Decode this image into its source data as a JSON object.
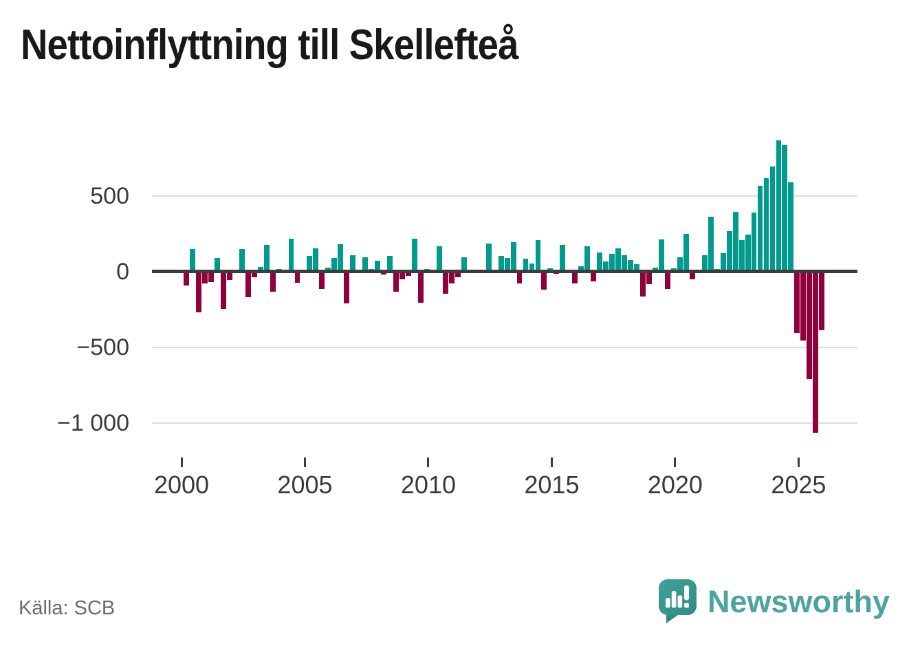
{
  "title": "Nettoinflyttning till Skellefteå",
  "footer": {
    "source": "Källa: SCB",
    "brand": "Newsworthy",
    "logo_icon": "newsworthy-speech-bubble-barchart-icon"
  },
  "chart_data": {
    "type": "bar",
    "title": "Nettoinflyttning till Skellefteå",
    "x_unit": "quarter",
    "ylabel": "",
    "xlabel": "",
    "ylim": [
      -1100,
      900
    ],
    "grid": true,
    "zero_line": true,
    "colors": {
      "positive": "#009B8D",
      "negative": "#90003C",
      "zero_line": "#3c3c3c",
      "gridline": "#dcdcdc"
    },
    "y_ticks": [
      {
        "label": "500",
        "value": 500
      },
      {
        "label": "0",
        "value": 0
      },
      {
        "label": "−500",
        "value": -500
      },
      {
        "label": "−1 000",
        "value": -1000
      }
    ],
    "x_tick_years": [
      2000,
      2005,
      2010,
      2015,
      2020,
      2025
    ],
    "years": [
      {
        "year": 2000,
        "values": [
          -94,
          148,
          -271,
          -79
        ]
      },
      {
        "year": 2001,
        "values": [
          -71,
          88,
          -248,
          -55
        ]
      },
      {
        "year": 2002,
        "values": [
          3,
          150,
          -172,
          -37
        ]
      },
      {
        "year": 2003,
        "values": [
          30,
          175,
          -135,
          16
        ]
      },
      {
        "year": 2004,
        "values": [
          2,
          214,
          -77,
          2
        ]
      },
      {
        "year": 2005,
        "values": [
          104,
          153,
          -114,
          23
        ]
      },
      {
        "year": 2006,
        "values": [
          90,
          180,
          -212,
          108
        ]
      },
      {
        "year": 2007,
        "values": [
          2,
          95,
          15,
          72
        ]
      },
      {
        "year": 2008,
        "values": [
          -21,
          102,
          -136,
          -53
        ]
      },
      {
        "year": 2009,
        "values": [
          -29,
          214,
          -208,
          17
        ]
      },
      {
        "year": 2010,
        "values": [
          3,
          168,
          -148,
          -79
        ]
      },
      {
        "year": 2011,
        "values": [
          -37,
          92,
          -3,
          2
        ]
      },
      {
        "year": 2012,
        "values": [
          -2,
          182,
          2,
          103
        ]
      },
      {
        "year": 2013,
        "values": [
          89,
          194,
          -79,
          85
        ]
      },
      {
        "year": 2014,
        "values": [
          53,
          205,
          -120,
          20
        ]
      },
      {
        "year": 2015,
        "values": [
          -18,
          176,
          -2,
          -79
        ]
      },
      {
        "year": 2016,
        "values": [
          36,
          167,
          -64,
          126
        ]
      },
      {
        "year": 2017,
        "values": [
          67,
          114,
          152,
          106
        ]
      },
      {
        "year": 2018,
        "values": [
          76,
          50,
          -167,
          -86
        ]
      },
      {
        "year": 2019,
        "values": [
          24,
          212,
          -118,
          22
        ]
      },
      {
        "year": 2020,
        "values": [
          95,
          250,
          -52,
          2
        ]
      },
      {
        "year": 2021,
        "values": [
          108,
          361,
          17,
          120
        ]
      },
      {
        "year": 2022,
        "values": [
          268,
          392,
          206,
          244
        ]
      },
      {
        "year": 2023,
        "values": [
          388,
          564,
          618,
          691
        ]
      },
      {
        "year": 2024,
        "values": [
          865,
          833,
          588,
          -405
        ]
      },
      {
        "year": 2025,
        "values": [
          -458,
          -712,
          -1068,
          -389
        ]
      }
    ]
  }
}
